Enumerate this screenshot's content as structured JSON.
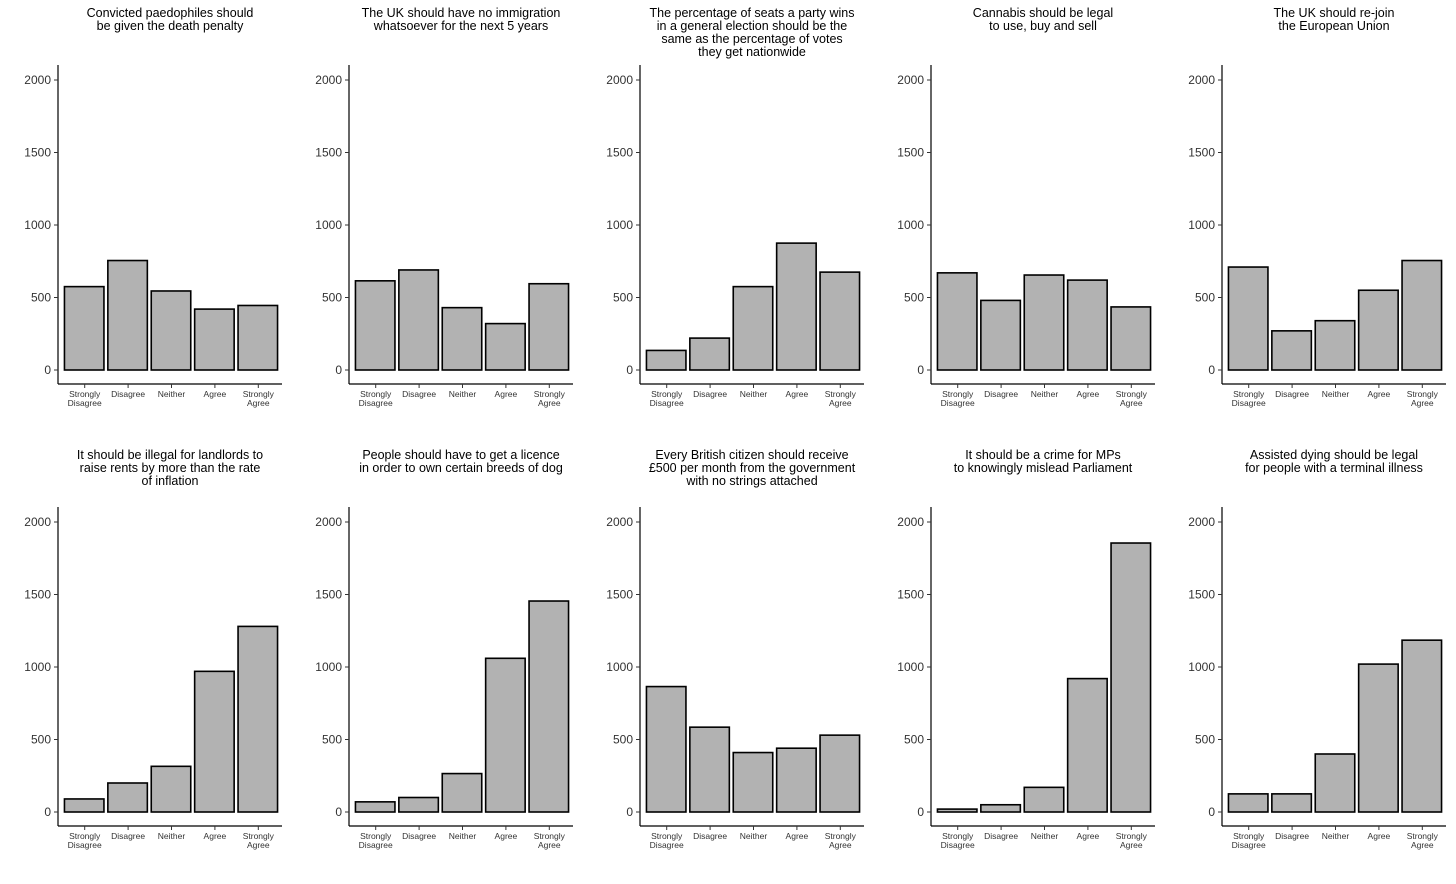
{
  "categories": [
    "Strongly Disagree",
    "Disagree",
    "Neither",
    "Agree",
    "Strongly Agree"
  ],
  "chart_data": [
    {
      "type": "bar",
      "title": "Convicted paedophiles should be given the death penalty",
      "title_lines": [
        "Convicted paedophiles should",
        "be given the death penalty"
      ],
      "categories": [
        "Strongly Disagree",
        "Disagree",
        "Neither",
        "Agree",
        "Strongly Agree"
      ],
      "values": [
        575,
        755,
        545,
        420,
        445
      ],
      "yticks": [
        0,
        500,
        1000,
        1500,
        2000
      ],
      "ylim": [
        0,
        2100
      ]
    },
    {
      "type": "bar",
      "title": "The UK should have no immigration whatsoever for the next 5 years",
      "title_lines": [
        "The UK should have no immigration",
        "whatsoever for the next 5 years"
      ],
      "categories": [
        "Strongly Disagree",
        "Disagree",
        "Neither",
        "Agree",
        "Strongly Agree"
      ],
      "values": [
        615,
        690,
        430,
        320,
        595
      ],
      "yticks": [
        0,
        500,
        1000,
        1500,
        2000
      ],
      "ylim": [
        0,
        2100
      ]
    },
    {
      "type": "bar",
      "title": "The percentage of seats a party wins in a general election should be the same as the percentage of votes they get nationwide",
      "title_lines": [
        "The percentage of seats a party wins",
        "in a general election should be the",
        "same as the percentage of votes",
        "they get nationwide"
      ],
      "categories": [
        "Strongly Disagree",
        "Disagree",
        "Neither",
        "Agree",
        "Strongly Agree"
      ],
      "values": [
        135,
        220,
        575,
        875,
        675
      ],
      "yticks": [
        0,
        500,
        1000,
        1500,
        2000
      ],
      "ylim": [
        0,
        2100
      ]
    },
    {
      "type": "bar",
      "title": "Cannabis should be legal to use, buy and sell",
      "title_lines": [
        "Cannabis should be legal",
        "to use, buy and sell"
      ],
      "categories": [
        "Strongly Disagree",
        "Disagree",
        "Neither",
        "Agree",
        "Strongly Agree"
      ],
      "values": [
        670,
        480,
        655,
        620,
        435
      ],
      "yticks": [
        0,
        500,
        1000,
        1500,
        2000
      ],
      "ylim": [
        0,
        2100
      ]
    },
    {
      "type": "bar",
      "title": "The UK should re-join the European Union",
      "title_lines": [
        "The UK should re-join",
        "the European Union"
      ],
      "categories": [
        "Strongly Disagree",
        "Disagree",
        "Neither",
        "Agree",
        "Strongly Agree"
      ],
      "values": [
        710,
        270,
        340,
        550,
        755
      ],
      "yticks": [
        0,
        500,
        1000,
        1500,
        2000
      ],
      "ylim": [
        0,
        2100
      ]
    },
    {
      "type": "bar",
      "title": "It should be illegal for landlords to raise rents by more than the rate of inflation",
      "title_lines": [
        "It should be illegal for landlords to",
        "raise rents by more than the rate",
        "of inflation"
      ],
      "categories": [
        "Strongly Disagree",
        "Disagree",
        "Neither",
        "Agree",
        "Strongly Agree"
      ],
      "values": [
        90,
        200,
        315,
        970,
        1280
      ],
      "yticks": [
        0,
        500,
        1000,
        1500,
        2000
      ],
      "ylim": [
        0,
        2100
      ]
    },
    {
      "type": "bar",
      "title": "People should have to get a licence in order to own certain breeds of dog",
      "title_lines": [
        "People should have to get a licence",
        "in order to own certain breeds of dog"
      ],
      "categories": [
        "Strongly Disagree",
        "Disagree",
        "Neither",
        "Agree",
        "Strongly Agree"
      ],
      "values": [
        70,
        100,
        265,
        1060,
        1455
      ],
      "yticks": [
        0,
        500,
        1000,
        1500,
        2000
      ],
      "ylim": [
        0,
        2100
      ]
    },
    {
      "type": "bar",
      "title": "Every British citizen should receive £500 per month from the government with no strings attached",
      "title_lines": [
        "Every British citizen should receive",
        "£500 per month from the government",
        "with no strings attached"
      ],
      "categories": [
        "Strongly Disagree",
        "Disagree",
        "Neither",
        "Agree",
        "Strongly Agree"
      ],
      "values": [
        865,
        585,
        410,
        440,
        530
      ],
      "yticks": [
        0,
        500,
        1000,
        1500,
        2000
      ],
      "ylim": [
        0,
        2100
      ]
    },
    {
      "type": "bar",
      "title": "It should be a crime for MPs to knowingly mislead Parliament",
      "title_lines": [
        "It should be a crime for MPs",
        "to knowingly mislead Parliament"
      ],
      "categories": [
        "Strongly Disagree",
        "Disagree",
        "Neither",
        "Agree",
        "Strongly Agree"
      ],
      "values": [
        20,
        50,
        170,
        920,
        1855
      ],
      "yticks": [
        0,
        500,
        1000,
        1500,
        2000
      ],
      "ylim": [
        0,
        2100
      ]
    },
    {
      "type": "bar",
      "title": "Assisted dying should be legal for people with a terminal illness",
      "title_lines": [
        "Assisted dying should be legal",
        "for people with a terminal illness"
      ],
      "categories": [
        "Strongly Disagree",
        "Disagree",
        "Neither",
        "Agree",
        "Strongly Agree"
      ],
      "values": [
        125,
        125,
        400,
        1020,
        1185
      ],
      "yticks": [
        0,
        500,
        1000,
        1500,
        2000
      ],
      "ylim": [
        0,
        2100
      ]
    }
  ]
}
